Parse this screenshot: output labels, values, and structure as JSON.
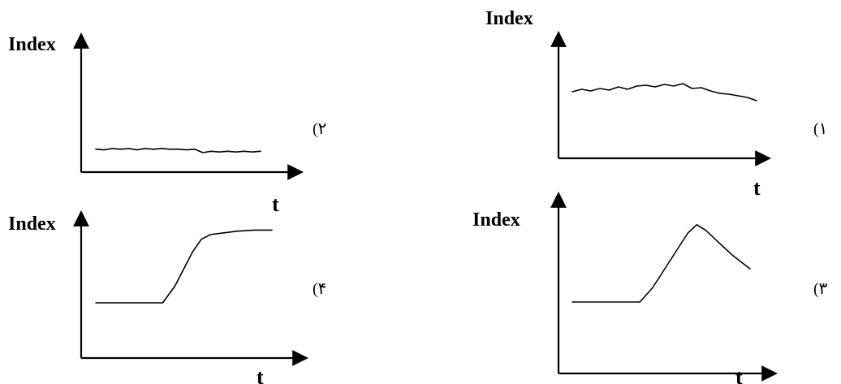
{
  "chart_data": [
    {
      "type": "line",
      "option_label": "(۱",
      "ylabel": "Index",
      "xlabel": "t",
      "ylim": [
        0,
        10
      ],
      "xlim": [
        0,
        10
      ],
      "series": [
        {
          "x": [
            0,
            0.5,
            1,
            1.5,
            2,
            2.5,
            3,
            3.5,
            4,
            4.5,
            5,
            5.5,
            6,
            6.5,
            7,
            7.5,
            8,
            8.5,
            9,
            9.5,
            10
          ],
          "y": [
            6.2,
            6.5,
            6.3,
            6.6,
            6.4,
            6.8,
            6.5,
            6.9,
            7.0,
            6.8,
            7.1,
            6.9,
            7.2,
            6.6,
            6.7,
            6.3,
            6.0,
            5.9,
            5.7,
            5.5,
            5.1
          ]
        }
      ]
    },
    {
      "type": "line",
      "option_label": "(۲",
      "ylabel": "Index",
      "xlabel": "t",
      "ylim": [
        0,
        10
      ],
      "xlim": [
        0,
        10
      ],
      "series": [
        {
          "x": [
            0,
            0.5,
            1,
            1.5,
            2,
            2.5,
            3,
            3.5,
            4,
            4.5,
            5,
            5.5,
            6,
            6.5,
            7,
            7.5,
            8,
            8.5,
            9,
            9.5,
            10
          ],
          "y": [
            2.5,
            2.4,
            2.6,
            2.5,
            2.6,
            2.4,
            2.6,
            2.5,
            2.6,
            2.5,
            2.5,
            2.4,
            2.5,
            2.0,
            2.2,
            2.1,
            2.2,
            2.1,
            2.2,
            2.1,
            2.2
          ]
        }
      ]
    },
    {
      "type": "line",
      "option_label": "(۳",
      "ylabel": "Index",
      "xlabel": "t",
      "ylim": [
        0,
        10
      ],
      "xlim": [
        0,
        10
      ],
      "series": [
        {
          "x": [
            0,
            1,
            2,
            3,
            3.8,
            4.5,
            5,
            5.5,
            6,
            6.5,
            7,
            7.5,
            8,
            8.5,
            9,
            10
          ],
          "y": [
            4.0,
            4.0,
            4.0,
            4.0,
            4.0,
            5.0,
            6.0,
            7.0,
            8.0,
            9.0,
            9.6,
            9.2,
            8.6,
            8.0,
            7.4,
            6.4
          ]
        }
      ]
    },
    {
      "type": "line",
      "option_label": "(۴",
      "ylabel": "Index",
      "xlabel": "t",
      "ylim": [
        0,
        10
      ],
      "xlim": [
        0,
        10
      ],
      "series": [
        {
          "x": [
            0,
            1,
            2,
            3,
            3.8,
            4.5,
            5,
            5.5,
            6,
            6.5,
            7,
            7.5,
            8,
            9,
            10
          ],
          "y": [
            3.0,
            3.0,
            3.0,
            3.0,
            3.0,
            4.5,
            6.0,
            7.5,
            8.6,
            9.0,
            9.1,
            9.2,
            9.3,
            9.4,
            9.4
          ]
        }
      ]
    }
  ]
}
